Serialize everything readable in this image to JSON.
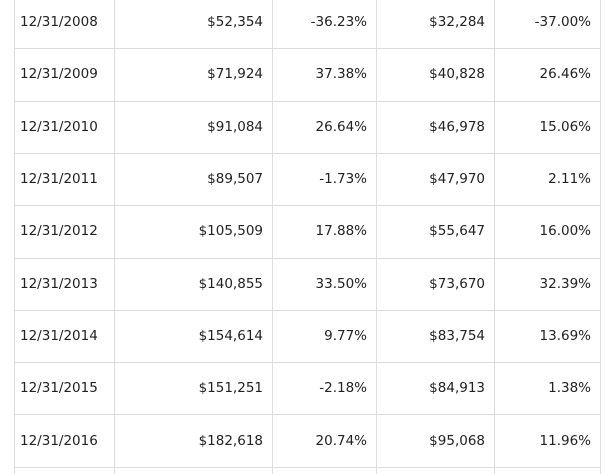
{
  "table": {
    "rows": [
      [
        "12/31/2008",
        "$52,354",
        "-36.23%",
        "$32,284",
        "-37.00%"
      ],
      [
        "12/31/2009",
        "$71,924",
        "37.38%",
        "$40,828",
        "26.46%"
      ],
      [
        "12/31/2010",
        "$91,084",
        "26.64%",
        "$46,978",
        "15.06%"
      ],
      [
        "12/31/2011",
        "$89,507",
        "-1.73%",
        "$47,970",
        "2.11%"
      ],
      [
        "12/31/2012",
        "$105,509",
        "17.88%",
        "$55,647",
        "16.00%"
      ],
      [
        "12/31/2013",
        "$140,855",
        "33.50%",
        "$73,670",
        "32.39%"
      ],
      [
        "12/31/2014",
        "$154,614",
        "9.77%",
        "$83,754",
        "13.69%"
      ],
      [
        "12/31/2015",
        "$151,251",
        "-2.18%",
        "$84,913",
        "1.38%"
      ],
      [
        "12/31/2016",
        "$182,618",
        "20.74%",
        "$95,068",
        "11.96%"
      ]
    ]
  }
}
